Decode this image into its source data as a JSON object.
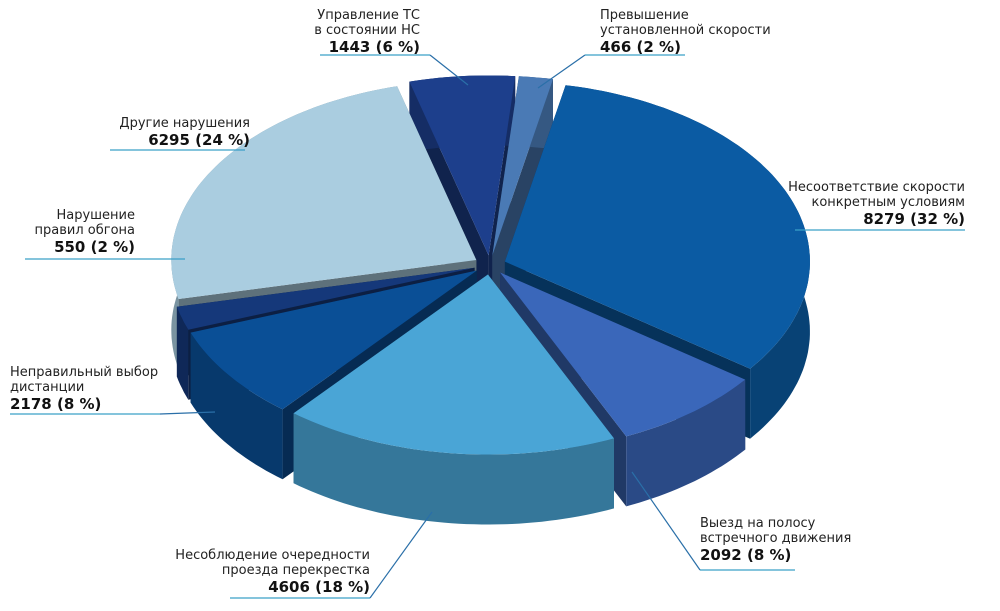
{
  "chart_data": {
    "type": "pie3d",
    "categories": [
      "Превышение\nустановленной скорости",
      "Несоответствие скорости\nконкретным условиям",
      "Выезд на полосу\nвстречного движения",
      "Несоблюдение очередности\nпроезда перекрестка",
      "Неправильный выбор\nдистанции",
      "Нарушение\nправил обгона",
      "Другие нарушения",
      "Управление ТС\nв состоянии НС"
    ],
    "values": [
      466,
      8279,
      2092,
      4606,
      2178,
      550,
      6295,
      1443
    ],
    "value_labels": [
      "466 (2 %)",
      "8279 (32 %)",
      "2092 (8 %)",
      "4606 (18 %)",
      "2178 (8 %)",
      "550 (2 %)",
      "6295 (24 %)",
      "1443 (6 %)"
    ],
    "colors": [
      "#4a7ab5",
      "#0b5ba3",
      "#3a67ba",
      "#4aa5d6",
      "#0a4f96",
      "#15387a",
      "#aacde0",
      "#1d3f8c"
    ]
  }
}
